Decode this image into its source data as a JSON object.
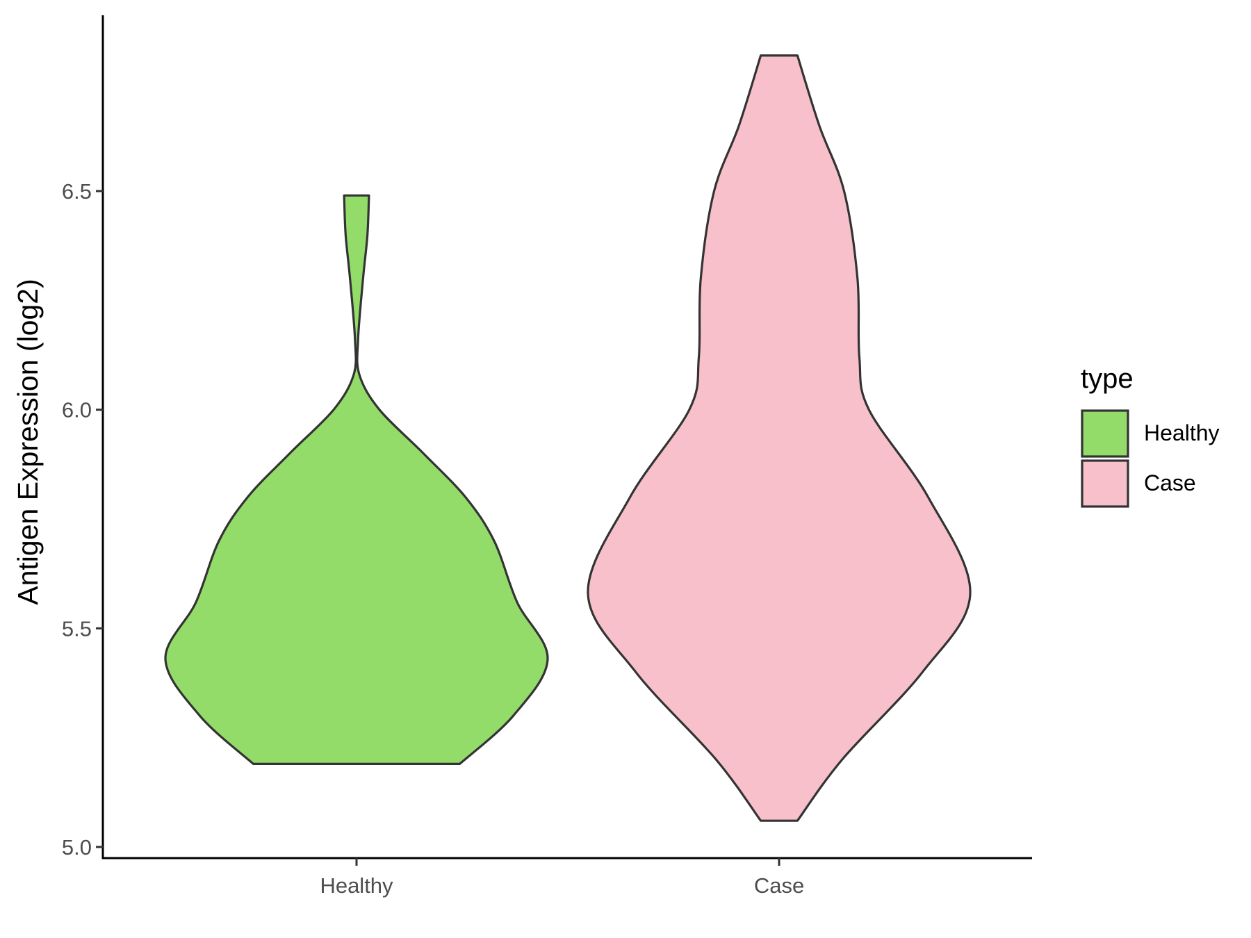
{
  "chart_data": {
    "type": "violin",
    "ylabel": "Antigen Expression (log2)",
    "ylim": [
      4.97,
      6.88
    ],
    "yticks": [
      "5.0",
      "5.5",
      "6.0",
      "6.5"
    ],
    "categories": [
      "Healthy",
      "Case"
    ],
    "legend": {
      "title": "type",
      "position": "right",
      "items": [
        {
          "label": "Healthy",
          "color": "#93DC6A"
        },
        {
          "label": "Case",
          "color": "#F7C0CB"
        }
      ]
    },
    "grid": false,
    "outline_color": "#333333",
    "series": [
      {
        "category": "Healthy",
        "color": "#93DC6A",
        "y_min": 5.19,
        "y_max": 6.49,
        "density_profile": [
          {
            "y": 5.19,
            "half_width": 0.54
          },
          {
            "y": 5.3,
            "half_width": 0.82
          },
          {
            "y": 5.43,
            "half_width": 1.0
          },
          {
            "y": 5.56,
            "half_width": 0.84
          },
          {
            "y": 5.7,
            "half_width": 0.72
          },
          {
            "y": 5.8,
            "half_width": 0.57
          },
          {
            "y": 5.9,
            "half_width": 0.35
          },
          {
            "y": 6.0,
            "half_width": 0.12
          },
          {
            "y": 6.08,
            "half_width": 0.015
          },
          {
            "y": 6.16,
            "half_width": 0.008
          },
          {
            "y": 6.3,
            "half_width": 0.034
          },
          {
            "y": 6.4,
            "half_width": 0.057
          },
          {
            "y": 6.49,
            "half_width": 0.065
          }
        ]
      },
      {
        "category": "Case",
        "color": "#F7C0CB",
        "y_min": 5.06,
        "y_max": 6.81,
        "density_profile": [
          {
            "y": 5.06,
            "half_width": 0.096
          },
          {
            "y": 5.2,
            "half_width": 0.33
          },
          {
            "y": 5.4,
            "half_width": 0.75
          },
          {
            "y": 5.58,
            "half_width": 1.0
          },
          {
            "y": 5.8,
            "half_width": 0.78
          },
          {
            "y": 6.0,
            "half_width": 0.47
          },
          {
            "y": 6.12,
            "half_width": 0.42
          },
          {
            "y": 6.3,
            "half_width": 0.41
          },
          {
            "y": 6.5,
            "half_width": 0.34
          },
          {
            "y": 6.65,
            "half_width": 0.21
          },
          {
            "y": 6.81,
            "half_width": 0.096
          }
        ]
      }
    ]
  }
}
